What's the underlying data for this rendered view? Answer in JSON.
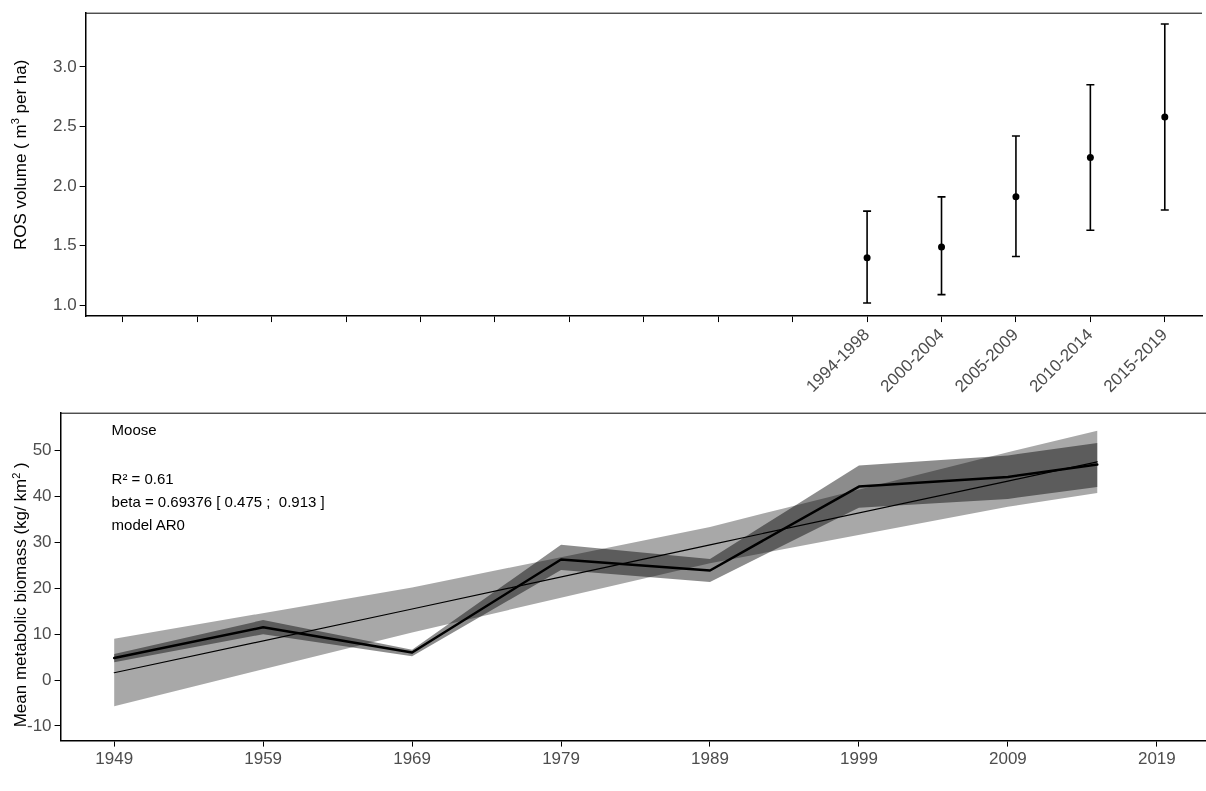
{
  "chart_data": [
    {
      "type": "scatter",
      "ylabel": "ROS volume ( m$^{3}$ per ha)",
      "categories": [
        null,
        null,
        null,
        null,
        null,
        null,
        null,
        null,
        null,
        null,
        "1994-1998",
        "2000-2004",
        "2005-2009",
        "2010-2014",
        "2015-2019"
      ],
      "ylim": [
        0.91,
        3.45
      ],
      "yticks": [
        {
          "value": 1,
          "label": "1.0"
        },
        1.5,
        {
          "value": 2,
          "label": "2.0"
        },
        2.5,
        {
          "value": 3,
          "label": "3.0"
        }
      ],
      "grid": false,
      "legend": false,
      "marker": "circle",
      "series": [
        {
          "color": "#000000",
          "values": [
            null,
            null,
            null,
            null,
            null,
            null,
            null,
            null,
            null,
            null,
            1.4,
            1.49,
            1.91,
            2.24,
            2.58
          ],
          "errors": [
            null,
            null,
            null,
            null,
            null,
            null,
            null,
            null,
            null,
            null,
            [
              1.02,
              1.79
            ],
            [
              1.09,
              1.91
            ],
            [
              1.41,
              2.42
            ],
            [
              1.63,
              2.85
            ],
            [
              1.8,
              3.36
            ]
          ]
        }
      ]
    },
    {
      "type": "line",
      "ylabel": "Mean metabolic biomass (kg/ km$^{2}$ )",
      "xlim": [
        1945.4,
        2022.3
      ],
      "xticks": [
        1949,
        1959,
        1969,
        1979,
        1989,
        1999,
        2009,
        2019
      ],
      "ylim": [
        -13.2,
        58.2
      ],
      "yticks": [
        -10,
        0,
        10,
        20,
        30,
        40,
        50
      ],
      "grid": false,
      "legend": false,
      "marker": "none",
      "annotations": [
        "Moose",
        "R² = 0.61",
        "beta = 0.69376 [ 0.475 ;  0.913 ]",
        "model AR0"
      ],
      "series": [
        {
          "color": "#000000",
          "x": [
            1949,
            1959,
            1969,
            1979,
            1989,
            1999,
            2009,
            2015
          ],
          "values": [
            4.8,
            11.5,
            6.0,
            26.3,
            23.9,
            42.2,
            44.3,
            47.0
          ],
          "lower": [
            3.9,
            10.0,
            5.2,
            24.0,
            21.4,
            37.6,
            39.5,
            42.1
          ],
          "upper": [
            5.7,
            13.1,
            6.6,
            29.5,
            26.4,
            46.8,
            49.0,
            51.7
          ]
        },
        {
          "color": "#000000",
          "x": [
            1949,
            1969,
            1989,
            2009,
            2015
          ],
          "values": [
            1.6,
            15.5,
            29.5,
            43.4,
            47.6
          ],
          "lower": [
            -5.7,
            10.4,
            25.5,
            37.8,
            40.8
          ],
          "upper": [
            9.0,
            20.2,
            33.4,
            49.7,
            54.4
          ]
        }
      ]
    }
  ]
}
